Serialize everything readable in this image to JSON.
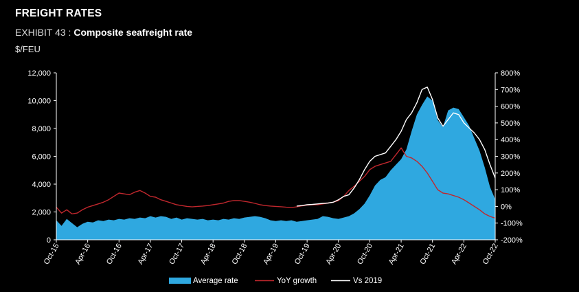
{
  "header": {
    "section_title": "FREIGHT RATES",
    "exhibit_label": "EXHIBIT 43 : ",
    "exhibit_title": "Composite seafreight rate",
    "unit": "$/FEU"
  },
  "chart_data": {
    "type": "area",
    "grid": false,
    "legend_position": "bottom",
    "x_tick_labels": [
      "Oct-15",
      "Apr-16",
      "Oct-16",
      "Apr-17",
      "Oct-17",
      "Apr-18",
      "Oct-18",
      "Apr-19",
      "Oct-19",
      "Apr-20",
      "Oct-20",
      "Apr-21",
      "Oct-21",
      "Apr-22",
      "Oct-22"
    ],
    "y_left": {
      "min": 0,
      "max": 12000,
      "tick_labels": [
        "0",
        "2,000",
        "4,000",
        "6,000",
        "8,000",
        "10,000",
        "12,000"
      ]
    },
    "y_right": {
      "min": -200,
      "max": 800,
      "tick_labels": [
        "-200%",
        "-100%",
        "0%",
        "100%",
        "200%",
        "300%",
        "400%",
        "500%",
        "600%",
        "700%",
        "800%"
      ]
    },
    "x_range": [
      0,
      84
    ],
    "series": [
      {
        "name": "Average rate",
        "axis": "left",
        "color": "#2fa8e0",
        "points": [
          [
            0,
            1400
          ],
          [
            1,
            1000
          ],
          [
            2,
            1500
          ],
          [
            3,
            1200
          ],
          [
            4,
            900
          ],
          [
            5,
            1150
          ],
          [
            6,
            1300
          ],
          [
            7,
            1250
          ],
          [
            8,
            1400
          ],
          [
            9,
            1350
          ],
          [
            10,
            1450
          ],
          [
            11,
            1400
          ],
          [
            12,
            1500
          ],
          [
            13,
            1450
          ],
          [
            14,
            1550
          ],
          [
            15,
            1500
          ],
          [
            16,
            1600
          ],
          [
            17,
            1550
          ],
          [
            18,
            1700
          ],
          [
            19,
            1600
          ],
          [
            20,
            1700
          ],
          [
            21,
            1650
          ],
          [
            22,
            1500
          ],
          [
            23,
            1600
          ],
          [
            24,
            1450
          ],
          [
            25,
            1550
          ],
          [
            26,
            1500
          ],
          [
            27,
            1450
          ],
          [
            28,
            1500
          ],
          [
            29,
            1400
          ],
          [
            30,
            1450
          ],
          [
            31,
            1400
          ],
          [
            32,
            1500
          ],
          [
            33,
            1450
          ],
          [
            34,
            1550
          ],
          [
            35,
            1500
          ],
          [
            36,
            1600
          ],
          [
            37,
            1650
          ],
          [
            38,
            1700
          ],
          [
            39,
            1650
          ],
          [
            40,
            1550
          ],
          [
            41,
            1400
          ],
          [
            42,
            1350
          ],
          [
            43,
            1400
          ],
          [
            44,
            1350
          ],
          [
            45,
            1400
          ],
          [
            46,
            1300
          ],
          [
            47,
            1350
          ],
          [
            48,
            1400
          ],
          [
            49,
            1450
          ],
          [
            50,
            1500
          ],
          [
            51,
            1700
          ],
          [
            52,
            1650
          ],
          [
            53,
            1550
          ],
          [
            54,
            1500
          ],
          [
            55,
            1600
          ],
          [
            56,
            1700
          ],
          [
            57,
            1900
          ],
          [
            58,
            2200
          ],
          [
            59,
            2600
          ],
          [
            60,
            3200
          ],
          [
            61,
            3900
          ],
          [
            62,
            4300
          ],
          [
            63,
            4500
          ],
          [
            64,
            5000
          ],
          [
            65,
            5400
          ],
          [
            66,
            5800
          ],
          [
            67,
            6500
          ],
          [
            68,
            7800
          ],
          [
            69,
            9000
          ],
          [
            70,
            9700
          ],
          [
            71,
            10300
          ],
          [
            72,
            10000
          ],
          [
            73,
            8600
          ],
          [
            74,
            8100
          ],
          [
            75,
            9300
          ],
          [
            76,
            9500
          ],
          [
            77,
            9400
          ],
          [
            78,
            8800
          ],
          [
            79,
            8200
          ],
          [
            80,
            7300
          ],
          [
            81,
            6400
          ],
          [
            82,
            5200
          ],
          [
            83,
            3800
          ],
          [
            84,
            2900
          ]
        ]
      },
      {
        "name": "YoY growth",
        "axis": "right",
        "color": "#c0272d",
        "points": [
          [
            0,
            -5
          ],
          [
            1,
            -40
          ],
          [
            2,
            -20
          ],
          [
            3,
            -45
          ],
          [
            4,
            -40
          ],
          [
            5,
            -20
          ],
          [
            6,
            -5
          ],
          [
            7,
            5
          ],
          [
            8,
            15
          ],
          [
            9,
            25
          ],
          [
            10,
            40
          ],
          [
            11,
            60
          ],
          [
            12,
            80
          ],
          [
            13,
            75
          ],
          [
            14,
            70
          ],
          [
            15,
            85
          ],
          [
            16,
            95
          ],
          [
            17,
            80
          ],
          [
            18,
            60
          ],
          [
            19,
            55
          ],
          [
            20,
            40
          ],
          [
            21,
            30
          ],
          [
            22,
            20
          ],
          [
            23,
            10
          ],
          [
            24,
            5
          ],
          [
            25,
            0
          ],
          [
            26,
            -3
          ],
          [
            27,
            0
          ],
          [
            28,
            2
          ],
          [
            29,
            5
          ],
          [
            30,
            10
          ],
          [
            31,
            15
          ],
          [
            32,
            20
          ],
          [
            33,
            30
          ],
          [
            34,
            35
          ],
          [
            35,
            35
          ],
          [
            36,
            30
          ],
          [
            37,
            25
          ],
          [
            38,
            18
          ],
          [
            39,
            10
          ],
          [
            40,
            5
          ],
          [
            41,
            2
          ],
          [
            42,
            0
          ],
          [
            43,
            -2
          ],
          [
            44,
            -5
          ],
          [
            45,
            -7
          ],
          [
            46,
            -3
          ],
          [
            47,
            3
          ],
          [
            48,
            8
          ],
          [
            49,
            10
          ],
          [
            50,
            10
          ],
          [
            51,
            15
          ],
          [
            52,
            20
          ],
          [
            53,
            25
          ],
          [
            54,
            35
          ],
          [
            55,
            60
          ],
          [
            56,
            95
          ],
          [
            57,
            120
          ],
          [
            58,
            150
          ],
          [
            59,
            180
          ],
          [
            60,
            220
          ],
          [
            61,
            240
          ],
          [
            62,
            250
          ],
          [
            63,
            260
          ],
          [
            64,
            270
          ],
          [
            65,
            310
          ],
          [
            66,
            350
          ],
          [
            67,
            300
          ],
          [
            68,
            290
          ],
          [
            69,
            270
          ],
          [
            70,
            240
          ],
          [
            71,
            200
          ],
          [
            72,
            150
          ],
          [
            73,
            100
          ],
          [
            74,
            80
          ],
          [
            75,
            75
          ],
          [
            76,
            65
          ],
          [
            77,
            55
          ],
          [
            78,
            40
          ],
          [
            79,
            20
          ],
          [
            80,
            0
          ],
          [
            81,
            -20
          ],
          [
            82,
            -45
          ],
          [
            83,
            -60
          ],
          [
            84,
            -70
          ]
        ]
      },
      {
        "name": "Vs 2019",
        "axis": "right",
        "color": "#ffffff",
        "points": [
          [
            46,
            2
          ],
          [
            47,
            5
          ],
          [
            48,
            10
          ],
          [
            49,
            12
          ],
          [
            50,
            15
          ],
          [
            51,
            18
          ],
          [
            52,
            20
          ],
          [
            53,
            25
          ],
          [
            54,
            40
          ],
          [
            55,
            60
          ],
          [
            56,
            70
          ],
          [
            57,
            110
          ],
          [
            58,
            160
          ],
          [
            59,
            220
          ],
          [
            60,
            270
          ],
          [
            61,
            300
          ],
          [
            62,
            310
          ],
          [
            63,
            320
          ],
          [
            64,
            360
          ],
          [
            65,
            400
          ],
          [
            66,
            450
          ],
          [
            67,
            520
          ],
          [
            68,
            560
          ],
          [
            69,
            620
          ],
          [
            70,
            700
          ],
          [
            71,
            715
          ],
          [
            72,
            640
          ],
          [
            73,
            530
          ],
          [
            74,
            480
          ],
          [
            75,
            520
          ],
          [
            76,
            560
          ],
          [
            77,
            550
          ],
          [
            78,
            500
          ],
          [
            79,
            470
          ],
          [
            80,
            440
          ],
          [
            81,
            400
          ],
          [
            82,
            340
          ],
          [
            83,
            250
          ],
          [
            84,
            170
          ]
        ]
      }
    ]
  }
}
